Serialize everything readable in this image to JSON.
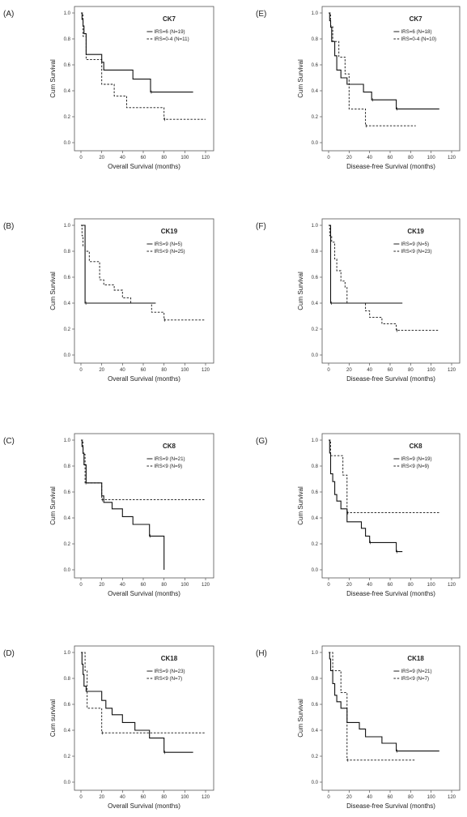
{
  "chart_data": [
    {
      "panel_label": "(A)",
      "type": "line",
      "title": "CK7",
      "xlabel": "Overall Survival (months)",
      "ylabel": "Cum Survival",
      "xlim": [
        0,
        120
      ],
      "ylim": [
        0,
        1
      ],
      "xticks": [
        0,
        20,
        40,
        60,
        80,
        100,
        120
      ],
      "yticks": [
        0.0,
        0.2,
        0.4,
        0.6,
        0.8,
        1.0
      ],
      "series": [
        {
          "name": "IRS=6 (N=19)",
          "dash": "solid",
          "x": [
            0,
            1,
            2,
            3,
            5,
            20,
            22,
            50,
            67,
            108
          ],
          "y": [
            1.0,
            0.95,
            0.9,
            0.84,
            0.68,
            0.62,
            0.56,
            0.49,
            0.39,
            0.39
          ]
        },
        {
          "name": "IRS=0-4 (N=11)",
          "dash": "dashed",
          "x": [
            0,
            2,
            5,
            20,
            32,
            44,
            80,
            120
          ],
          "y": [
            1.0,
            0.82,
            0.64,
            0.45,
            0.36,
            0.27,
            0.18,
            0.18
          ]
        }
      ]
    },
    {
      "panel_label": "(E)",
      "type": "line",
      "title": "CK7",
      "xlabel": "Disease-free Survival (months)",
      "ylabel": "Cum Survival",
      "xlim": [
        0,
        120
      ],
      "ylim": [
        0,
        1
      ],
      "xticks": [
        0,
        20,
        40,
        60,
        80,
        100,
        120
      ],
      "yticks": [
        0.0,
        0.2,
        0.4,
        0.6,
        0.8,
        1.0
      ],
      "series": [
        {
          "name": "IRS=6 (N=18)",
          "dash": "solid",
          "x": [
            0,
            1,
            2,
            3,
            6,
            8,
            12,
            18,
            34,
            42,
            52,
            66,
            108
          ],
          "y": [
            1.0,
            0.94,
            0.89,
            0.78,
            0.67,
            0.56,
            0.5,
            0.45,
            0.39,
            0.33,
            0.33,
            0.26,
            0.26
          ]
        },
        {
          "name": "IRS=0-4 (N=10)",
          "dash": "dashed",
          "x": [
            0,
            2,
            4,
            10,
            16,
            20,
            36,
            85
          ],
          "y": [
            1.0,
            0.9,
            0.78,
            0.66,
            0.53,
            0.26,
            0.13,
            0.13
          ]
        }
      ]
    },
    {
      "panel_label": "(B)",
      "type": "line",
      "title": "CK19",
      "xlabel": "Overall Survival (months)",
      "ylabel": "Cum Survival",
      "xlim": [
        0,
        120
      ],
      "ylim": [
        0,
        1
      ],
      "xticks": [
        0,
        20,
        40,
        60,
        80,
        100,
        120
      ],
      "yticks": [
        0.0,
        0.2,
        0.4,
        0.6,
        0.8,
        1.0
      ],
      "series": [
        {
          "name": "IRS=9 (N=5)",
          "dash": "solid",
          "x": [
            0,
            4,
            72
          ],
          "y": [
            1.0,
            0.4,
            0.4
          ]
        },
        {
          "name": "IRS<9 (N=25)",
          "dash": "dashed",
          "x": [
            0,
            1,
            2,
            4,
            8,
            18,
            22,
            32,
            40,
            48,
            68,
            80,
            120
          ],
          "y": [
            1.0,
            0.92,
            0.84,
            0.8,
            0.72,
            0.58,
            0.54,
            0.5,
            0.44,
            0.4,
            0.33,
            0.27,
            0.27
          ]
        }
      ]
    },
    {
      "panel_label": "(F)",
      "type": "line",
      "title": "CK19",
      "xlabel": "Disease-free Survival (months)",
      "ylabel": "Cum Survival",
      "xlim": [
        0,
        120
      ],
      "ylim": [
        0,
        1
      ],
      "xticks": [
        0,
        20,
        40,
        60,
        80,
        100,
        120
      ],
      "yticks": [
        0.0,
        0.2,
        0.4,
        0.6,
        0.8,
        1.0
      ],
      "series": [
        {
          "name": "IRS=9 (N=5)",
          "dash": "solid",
          "x": [
            0,
            2,
            72
          ],
          "y": [
            1.0,
            0.4,
            0.4
          ]
        },
        {
          "name": "IRS<9 (N=23)",
          "dash": "dashed",
          "x": [
            0,
            1,
            3,
            6,
            8,
            12,
            16,
            18,
            36,
            40,
            52,
            66,
            108
          ],
          "y": [
            1.0,
            0.92,
            0.87,
            0.74,
            0.65,
            0.57,
            0.52,
            0.4,
            0.34,
            0.29,
            0.24,
            0.19,
            0.19
          ]
        }
      ]
    },
    {
      "panel_label": "(C)",
      "type": "line",
      "title": "CK8",
      "xlabel": "Overall Survival (months)",
      "ylabel": "Cum Survival",
      "xlim": [
        0,
        120
      ],
      "ylim": [
        0,
        1
      ],
      "xticks": [
        0,
        20,
        40,
        60,
        80,
        100,
        120
      ],
      "yticks": [
        0.0,
        0.2,
        0.4,
        0.6,
        0.8,
        1.0
      ],
      "series": [
        {
          "name": "IRS=9 (N=21)",
          "dash": "solid",
          "x": [
            0,
            1,
            2,
            3,
            5,
            20,
            22,
            30,
            40,
            50,
            66,
            80,
            80
          ],
          "y": [
            1.0,
            0.95,
            0.9,
            0.81,
            0.67,
            0.57,
            0.52,
            0.47,
            0.41,
            0.35,
            0.26,
            0.26,
            0.0
          ]
        },
        {
          "name": "IRS<9 (N=9)",
          "dash": "dashed",
          "x": [
            0,
            2,
            4,
            18,
            20,
            120
          ],
          "y": [
            1.0,
            0.89,
            0.67,
            0.67,
            0.54,
            0.54
          ]
        }
      ]
    },
    {
      "panel_label": "(G)",
      "type": "line",
      "title": "CK8",
      "xlabel": "Disease-free Survival (months)",
      "ylabel": "Cum Survival",
      "xlim": [
        0,
        120
      ],
      "ylim": [
        0,
        1
      ],
      "xticks": [
        0,
        20,
        40,
        60,
        80,
        100,
        120
      ],
      "yticks": [
        0.0,
        0.2,
        0.4,
        0.6,
        0.8,
        1.0
      ],
      "series": [
        {
          "name": "IRS=9 (N=19)",
          "dash": "solid",
          "x": [
            0,
            1,
            2,
            4,
            6,
            8,
            12,
            18,
            32,
            36,
            40,
            52,
            66,
            72
          ],
          "y": [
            1.0,
            0.9,
            0.74,
            0.68,
            0.58,
            0.53,
            0.47,
            0.37,
            0.32,
            0.26,
            0.21,
            0.21,
            0.14,
            0.14
          ]
        },
        {
          "name": "IRS<9 (N=9)",
          "dash": "dashed",
          "x": [
            0,
            2,
            14,
            18,
            108
          ],
          "y": [
            1.0,
            0.88,
            0.73,
            0.44,
            0.44
          ]
        }
      ]
    },
    {
      "panel_label": "(D)",
      "type": "line",
      "title": "CK18",
      "xlabel": "Overall Survival (months)",
      "ylabel": "Cum survival",
      "xlim": [
        0,
        120
      ],
      "ylim": [
        0,
        1
      ],
      "xticks": [
        0,
        20,
        40,
        60,
        80,
        100,
        120
      ],
      "yticks": [
        0.0,
        0.2,
        0.4,
        0.6,
        0.8,
        1.0
      ],
      "series": [
        {
          "name": "IRS=9 (N=23)",
          "dash": "solid",
          "x": [
            0,
            1,
            2,
            3,
            5,
            20,
            24,
            30,
            40,
            52,
            66,
            80,
            108
          ],
          "y": [
            1.0,
            0.91,
            0.83,
            0.74,
            0.7,
            0.63,
            0.57,
            0.52,
            0.46,
            0.4,
            0.34,
            0.23,
            0.23
          ]
        },
        {
          "name": "IRS<9 (N=7)",
          "dash": "dashed",
          "x": [
            0,
            4,
            6,
            20,
            120
          ],
          "y": [
            1.0,
            0.86,
            0.57,
            0.38,
            0.38
          ]
        }
      ]
    },
    {
      "panel_label": "(H)",
      "type": "line",
      "title": "CK18",
      "xlabel": "Disease-free Survival (months)",
      "ylabel": "Cum Survival",
      "xlim": [
        0,
        120
      ],
      "ylim": [
        0,
        1
      ],
      "xticks": [
        0,
        20,
        40,
        60,
        80,
        100,
        120
      ],
      "yticks": [
        0.0,
        0.2,
        0.4,
        0.6,
        0.8,
        1.0
      ],
      "series": [
        {
          "name": "IRS=9 (N=21)",
          "dash": "solid",
          "x": [
            0,
            1,
            2,
            4,
            6,
            8,
            12,
            18,
            30,
            36,
            52,
            66,
            108
          ],
          "y": [
            1.0,
            0.95,
            0.86,
            0.76,
            0.67,
            0.62,
            0.57,
            0.46,
            0.41,
            0.35,
            0.3,
            0.24,
            0.24
          ]
        },
        {
          "name": "IRS<9 (N=7)",
          "dash": "dashed",
          "x": [
            0,
            4,
            12,
            18,
            85
          ],
          "y": [
            1.0,
            0.86,
            0.69,
            0.17,
            0.17
          ]
        }
      ]
    }
  ]
}
